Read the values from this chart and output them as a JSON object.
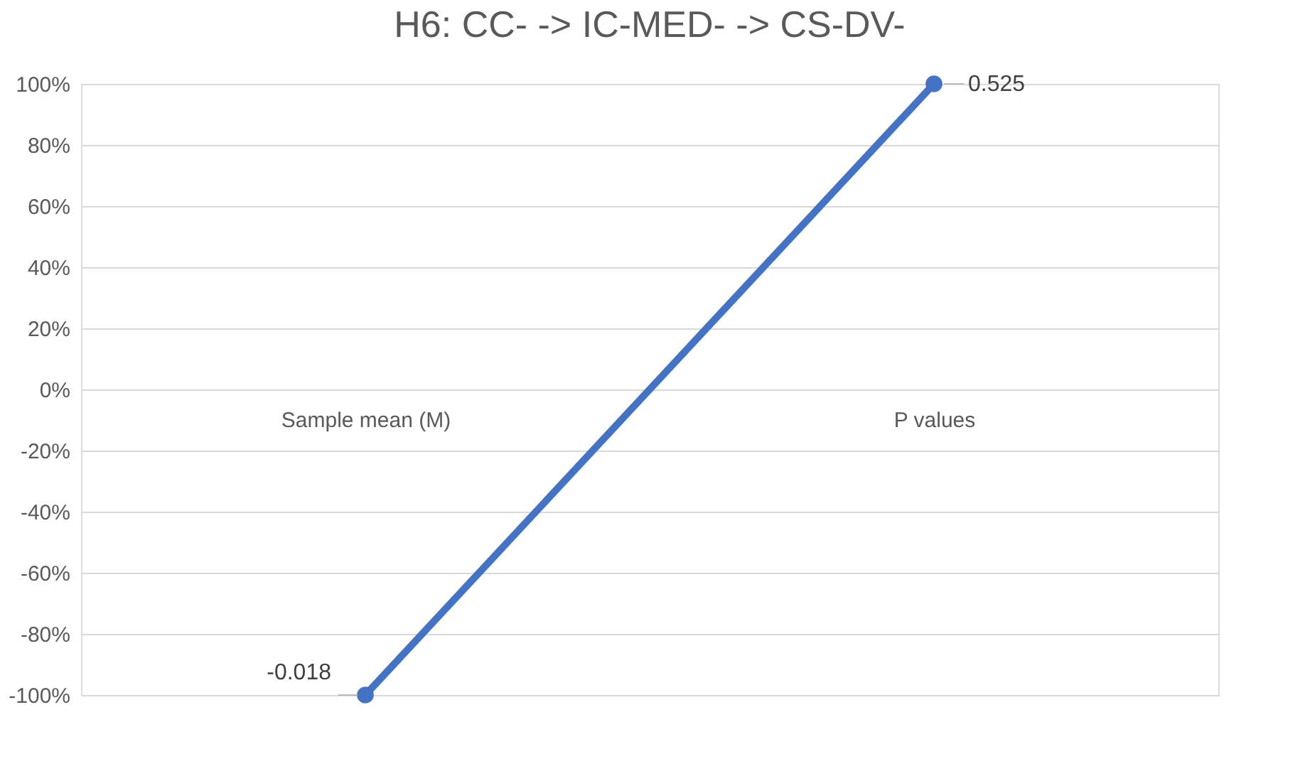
{
  "chart_data": {
    "type": "line",
    "title": "H6: CC- -> IC-MED- -> CS-DV-",
    "categories": [
      "Sample mean (M)",
      "P values"
    ],
    "series": [
      {
        "color": "#4472c4",
        "values": [
          -100,
          100
        ]
      }
    ],
    "annotations": [
      {
        "text": "-0.018",
        "x": "Sample mean (M)",
        "y": -100
      },
      {
        "text": "0.525",
        "x": "P values",
        "y": 100
      }
    ],
    "ylim": [
      -100,
      100
    ],
    "yticks": [
      {
        "value": -100,
        "label": "-100%"
      },
      {
        "value": -80,
        "label": "-80%"
      },
      {
        "value": -60,
        "label": "-60%"
      },
      {
        "value": -40,
        "label": "-40%"
      },
      {
        "value": -20,
        "label": "-20%"
      },
      {
        "value": 0,
        "label": "0%"
      },
      {
        "value": 20,
        "label": "20%"
      },
      {
        "value": 40,
        "label": "40%"
      },
      {
        "value": 60,
        "label": "60%"
      },
      {
        "value": 80,
        "label": "80%"
      },
      {
        "value": 100,
        "label": "100%"
      }
    ],
    "grid": "y",
    "marker": "circle",
    "line_style": "solid",
    "legend": false
  }
}
